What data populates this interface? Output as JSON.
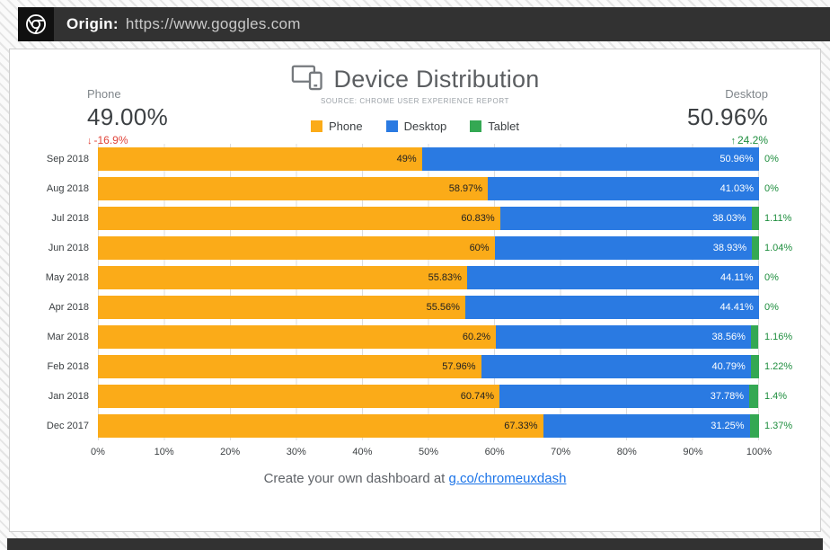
{
  "header": {
    "origin_label": "Origin:",
    "origin_url": "https://www.goggles.com"
  },
  "title": {
    "text": "Device Distribution",
    "subtitle": "SOURCE: CHROME USER EXPERIENCE REPORT"
  },
  "stats": {
    "left": {
      "label": "Phone",
      "value": "49.00%",
      "delta_arrow": "↓",
      "delta": "-16.9%"
    },
    "right": {
      "label": "Desktop",
      "value": "50.96%",
      "delta_arrow": "↑",
      "delta": "24.2%"
    }
  },
  "colors": {
    "phone": "#FBAB18",
    "desktop": "#2A7AE2",
    "tablet": "#34A853",
    "delta_down": "#E0443A",
    "delta_up": "#1E8E3E",
    "tablet_text": "#1E8E3E",
    "link": "#1A73E8"
  },
  "legend": [
    {
      "label": "Phone",
      "color": "#FBAB18"
    },
    {
      "label": "Desktop",
      "color": "#2A7AE2"
    },
    {
      "label": "Tablet",
      "color": "#34A853"
    }
  ],
  "chart_data": {
    "type": "bar",
    "stacked": true,
    "orientation": "horizontal",
    "title": "Device Distribution",
    "xlabel": "",
    "ylabel": "",
    "xlim": [
      0,
      100
    ],
    "grid": true,
    "legend_position": "top",
    "categories": [
      "Sep 2018",
      "Aug 2018",
      "Jul 2018",
      "Jun 2018",
      "May 2018",
      "Apr 2018",
      "Mar 2018",
      "Feb 2018",
      "Jan 2018",
      "Dec 2017"
    ],
    "series": [
      {
        "name": "Phone",
        "color": "#FBAB18",
        "values": [
          49,
          58.97,
          60.83,
          60,
          55.83,
          55.56,
          60.2,
          57.96,
          60.74,
          67.33
        ],
        "labels": [
          "49%",
          "58.97%",
          "60.83%",
          "60%",
          "55.83%",
          "55.56%",
          "60.2%",
          "57.96%",
          "60.74%",
          "67.33%"
        ]
      },
      {
        "name": "Desktop",
        "color": "#2A7AE2",
        "values": [
          50.96,
          41.03,
          38.03,
          38.93,
          44.11,
          44.41,
          38.56,
          40.79,
          37.78,
          31.25
        ],
        "labels": [
          "50.96%",
          "41.03%",
          "38.03%",
          "38.93%",
          "44.11%",
          "44.41%",
          "38.56%",
          "40.79%",
          "37.78%",
          "31.25%"
        ]
      },
      {
        "name": "Tablet",
        "color": "#34A853",
        "values": [
          0,
          0,
          1.11,
          1.04,
          0,
          0,
          1.16,
          1.22,
          1.4,
          1.37
        ],
        "labels": [
          "0%",
          "0%",
          "1.11%",
          "1.04%",
          "0%",
          "0%",
          "1.16%",
          "1.22%",
          "1.4%",
          "1.37%"
        ]
      }
    ],
    "x_ticks": [
      "0%",
      "10%",
      "20%",
      "30%",
      "40%",
      "50%",
      "60%",
      "70%",
      "80%",
      "90%",
      "100%"
    ]
  },
  "footer": {
    "text": "Create your own dashboard at ",
    "link": "g.co/chromeuxdash"
  }
}
